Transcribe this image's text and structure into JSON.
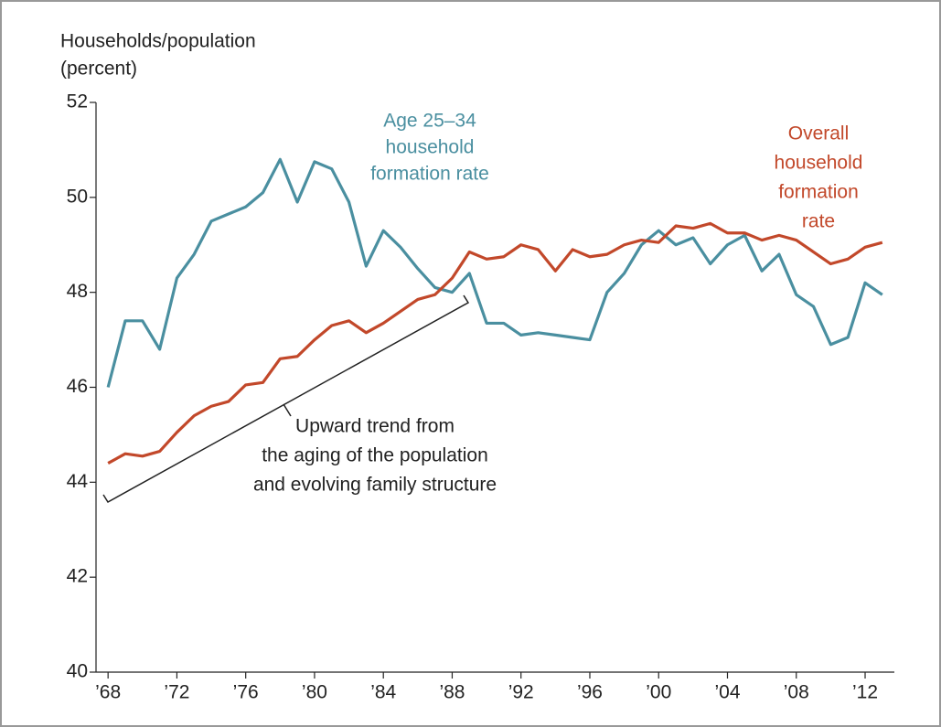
{
  "chart_data": {
    "type": "line",
    "y_axis_title": [
      "Households/population",
      "(percent)"
    ],
    "x": [
      1968,
      1969,
      1970,
      1971,
      1972,
      1973,
      1974,
      1975,
      1976,
      1977,
      1978,
      1979,
      1980,
      1981,
      1982,
      1983,
      1984,
      1985,
      1986,
      1987,
      1988,
      1989,
      1990,
      1991,
      1992,
      1993,
      1994,
      1995,
      1996,
      1997,
      1998,
      1999,
      2000,
      2001,
      2002,
      2003,
      2004,
      2005,
      2006,
      2007,
      2008,
      2009,
      2010,
      2011,
      2012,
      2013
    ],
    "series": [
      {
        "name": [
          "Age 25–34",
          "household",
          "formation rate"
        ],
        "color": "#4a8fa0",
        "values": [
          46.0,
          47.4,
          47.4,
          46.8,
          48.3,
          48.8,
          49.5,
          49.65,
          49.8,
          50.1,
          50.8,
          49.9,
          50.75,
          50.6,
          49.9,
          48.55,
          49.3,
          48.95,
          48.5,
          48.1,
          48.0,
          48.4,
          47.35,
          47.35,
          47.1,
          47.15,
          47.1,
          47.05,
          47.0,
          48.0,
          48.4,
          49.0,
          49.3,
          49.0,
          49.15,
          48.6,
          49.0,
          49.2,
          48.45,
          48.8,
          47.95,
          47.7,
          46.9,
          47.05,
          48.2,
          47.95
        ]
      },
      {
        "name": [
          "Overall",
          "household",
          "formation",
          "rate"
        ],
        "color": "#c2482a",
        "values": [
          44.4,
          44.6,
          44.55,
          44.65,
          45.05,
          45.4,
          45.6,
          45.7,
          46.05,
          46.1,
          46.6,
          46.65,
          47.0,
          47.3,
          47.4,
          47.15,
          47.35,
          47.6,
          47.85,
          47.95,
          48.3,
          48.85,
          48.7,
          48.75,
          49.0,
          48.9,
          48.45,
          48.9,
          48.75,
          48.8,
          49.0,
          49.1,
          49.05,
          49.4,
          49.35,
          49.45,
          49.25,
          49.25,
          49.1,
          49.2,
          49.1,
          48.85,
          48.6,
          48.7,
          48.95,
          49.05
        ]
      }
    ],
    "annotation": [
      "Upward trend from",
      "the aging of the population",
      "and evolving family structure"
    ],
    "xlim": [
      1967.3,
      2013.7
    ],
    "xticks": [
      {
        "value": 1968,
        "label": "’68"
      },
      {
        "value": 1972,
        "label": "’72"
      },
      {
        "value": 1976,
        "label": "’76"
      },
      {
        "value": 1980,
        "label": "’80"
      },
      {
        "value": 1984,
        "label": "’84"
      },
      {
        "value": 1988,
        "label": "’88"
      },
      {
        "value": 1992,
        "label": "’92"
      },
      {
        "value": 1996,
        "label": "’96"
      },
      {
        "value": 2000,
        "label": "’00"
      },
      {
        "value": 2004,
        "label": "’04"
      },
      {
        "value": 2008,
        "label": "’08"
      },
      {
        "value": 2012,
        "label": "’12"
      }
    ],
    "ylim": [
      40,
      52
    ],
    "yticks": [
      40,
      42,
      44,
      46,
      48,
      50,
      52
    ]
  }
}
